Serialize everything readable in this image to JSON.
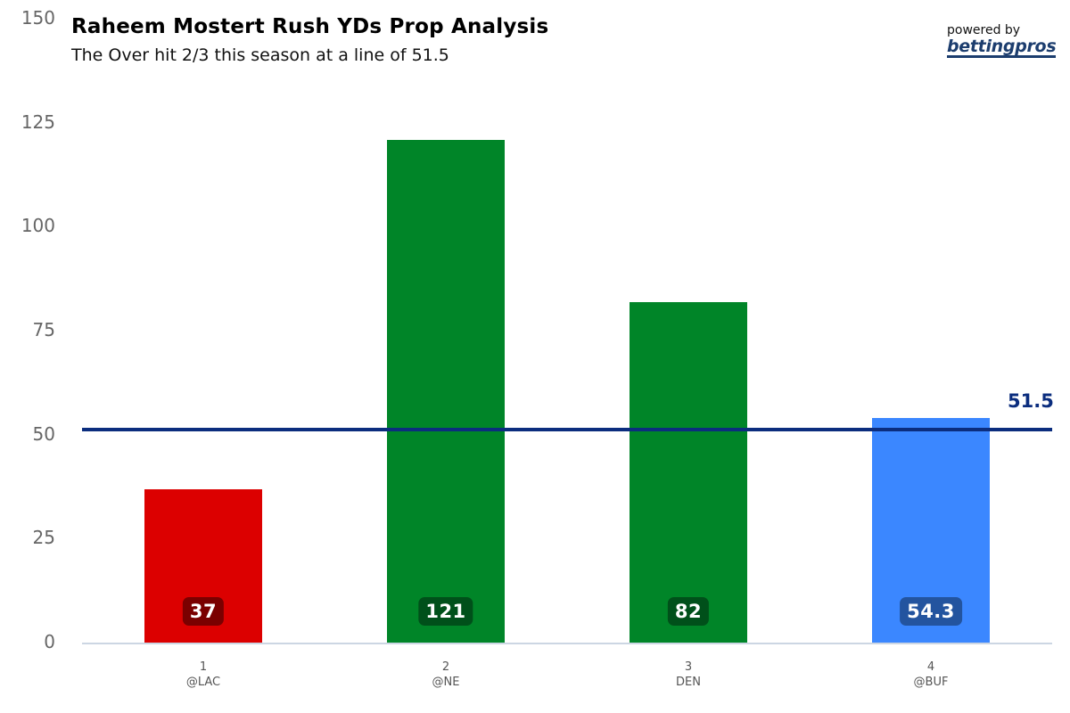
{
  "header": {
    "title": "Raheem Mostert Rush YDs Prop Analysis",
    "subtitle": "The Over hit 2/3 this season at a line of 51.5"
  },
  "brand": {
    "powered_by": "powered by",
    "logo_text": "bettingpros"
  },
  "colors": {
    "over": "#008528",
    "under": "#dc0000",
    "projection": "#3b87ff",
    "line": "#0b2d7e",
    "over_badge": "#00501a",
    "under_badge": "#7a0000",
    "projection_badge": "#23549f"
  },
  "chart_data": {
    "type": "bar",
    "title": "Raheem Mostert Rush YDs Prop Analysis",
    "subtitle": "The Over hit 2/3 this season at a line of 51.5",
    "xlabel": "",
    "ylabel": "",
    "ylim": [
      0,
      150
    ],
    "yticks": [
      0,
      25,
      50,
      75,
      100,
      125,
      150
    ],
    "categories": [
      "1 @LAC",
      "2 @NE",
      "3 DEN",
      "4 @BUF"
    ],
    "bars": [
      {
        "week": "1",
        "opponent": "@LAC",
        "value": 37,
        "label": "37",
        "status": "under"
      },
      {
        "week": "2",
        "opponent": "@NE",
        "value": 121,
        "label": "121",
        "status": "over"
      },
      {
        "week": "3",
        "opponent": "DEN",
        "value": 82,
        "label": "82",
        "status": "over"
      },
      {
        "week": "4",
        "opponent": "@BUF",
        "value": 54.3,
        "label": "54.3",
        "status": "projection"
      }
    ],
    "reference_line": {
      "value": 51.5,
      "label": "51.5"
    },
    "grid": false,
    "legend": "none"
  }
}
